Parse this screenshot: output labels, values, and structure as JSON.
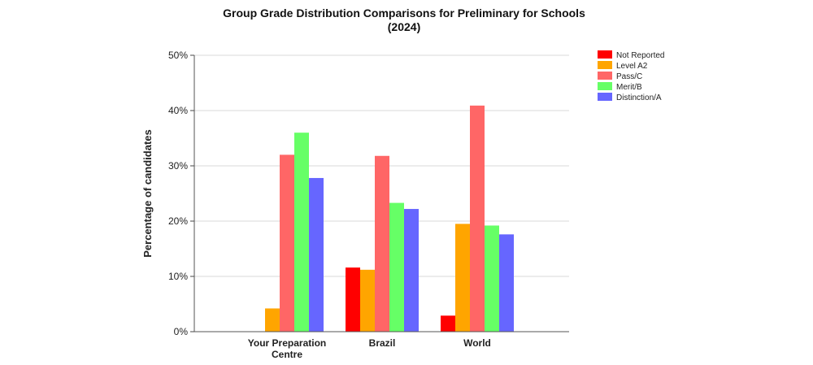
{
  "chart_data": {
    "type": "bar",
    "title_line1": "Group Grade Distribution Comparisons for Preliminary for Schools",
    "title_line2": "(2024)",
    "ylabel": "Percentage of candidates",
    "xlabel": "",
    "ylim": [
      0,
      50
    ],
    "yticks": [
      "0%",
      "10%",
      "20%",
      "30%",
      "40%",
      "50%"
    ],
    "categories": [
      "Your Preparation Centre",
      "Brazil",
      "World"
    ],
    "category_lines": [
      [
        "Your Preparation",
        "Centre"
      ],
      [
        "Brazil"
      ],
      [
        "World"
      ]
    ],
    "grid": true,
    "legend_position": "top-right",
    "series": [
      {
        "name": "Not Reported",
        "color": "#ff0000",
        "values": [
          0,
          11.6,
          2.9
        ]
      },
      {
        "name": "Level A2",
        "color": "#ffa500",
        "values": [
          4.2,
          11.2,
          19.5
        ]
      },
      {
        "name": "Pass/C",
        "color": "#ff6666",
        "values": [
          32.0,
          31.8,
          40.9
        ]
      },
      {
        "name": "Merit/B",
        "color": "#66ff66",
        "values": [
          36.0,
          23.3,
          19.2
        ]
      },
      {
        "name": "Distinction/A",
        "color": "#6666ff",
        "values": [
          27.8,
          22.2,
          17.6
        ]
      }
    ]
  }
}
